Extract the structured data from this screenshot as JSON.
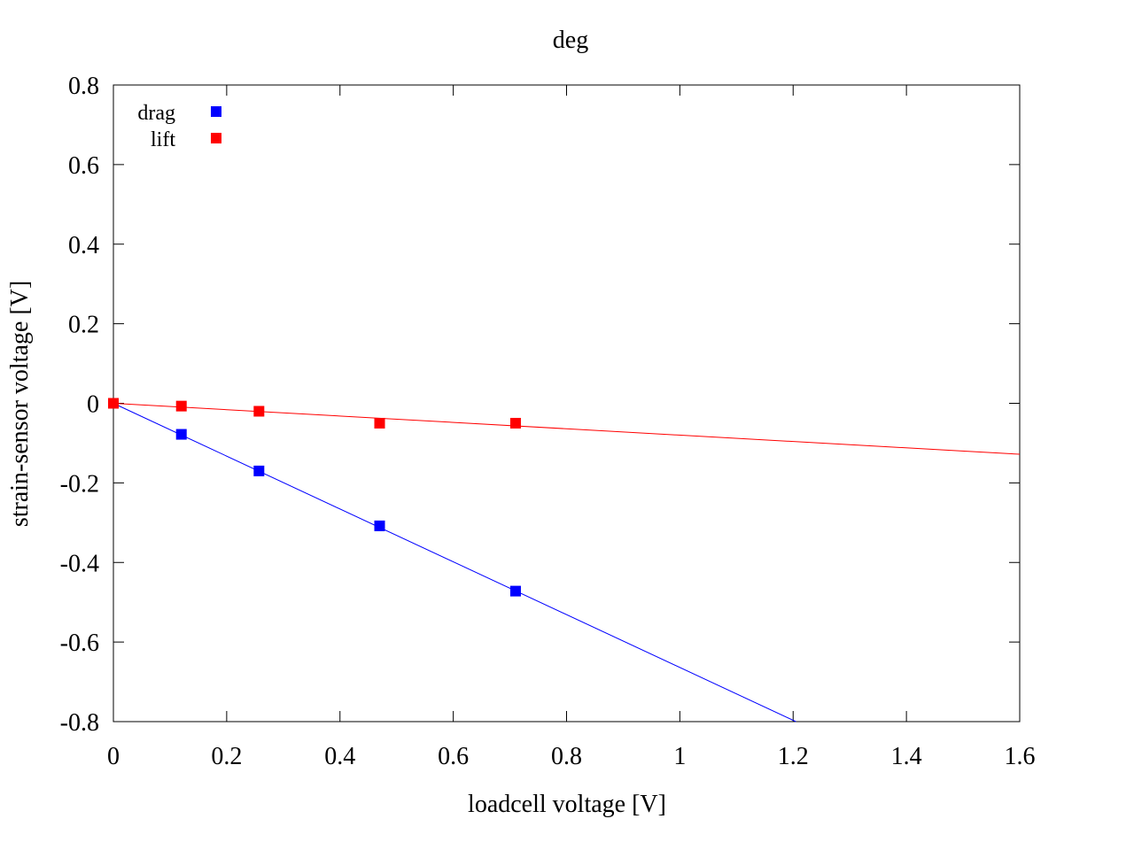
{
  "chart_data": {
    "type": "scatter",
    "title": "deg",
    "xlabel": "loadcell voltage [V]",
    "ylabel": "strain-sensor voltage [V]",
    "xlim": [
      0,
      1.6
    ],
    "ylim": [
      -0.8,
      0.8
    ],
    "xticks": [
      "0",
      "0.2",
      "0.4",
      "0.6",
      "0.8",
      "1",
      "1.2",
      "1.4",
      "1.6"
    ],
    "yticks": [
      "-0.8",
      "-0.6",
      "-0.4",
      "-0.2",
      "0",
      "0.2",
      "0.4",
      "0.6",
      "0.8"
    ],
    "grid": false,
    "legend_position": "top-left",
    "series": [
      {
        "name": "drag",
        "color": "#0000ff",
        "x": [
          0,
          0.12,
          0.257,
          0.47,
          0.71
        ],
        "y": [
          0,
          -0.078,
          -0.17,
          -0.308,
          -0.472
        ],
        "fit_line": [
          [
            0,
            0
          ],
          [
            1.205,
            -0.8
          ]
        ]
      },
      {
        "name": "lift",
        "color": "#ff0000",
        "x": [
          0,
          0.12,
          0.257,
          0.47,
          0.71
        ],
        "y": [
          0,
          -0.007,
          -0.02,
          -0.05,
          -0.05
        ],
        "fit_line": [
          [
            0,
            0
          ],
          [
            1.6,
            -0.128
          ]
        ]
      }
    ]
  }
}
